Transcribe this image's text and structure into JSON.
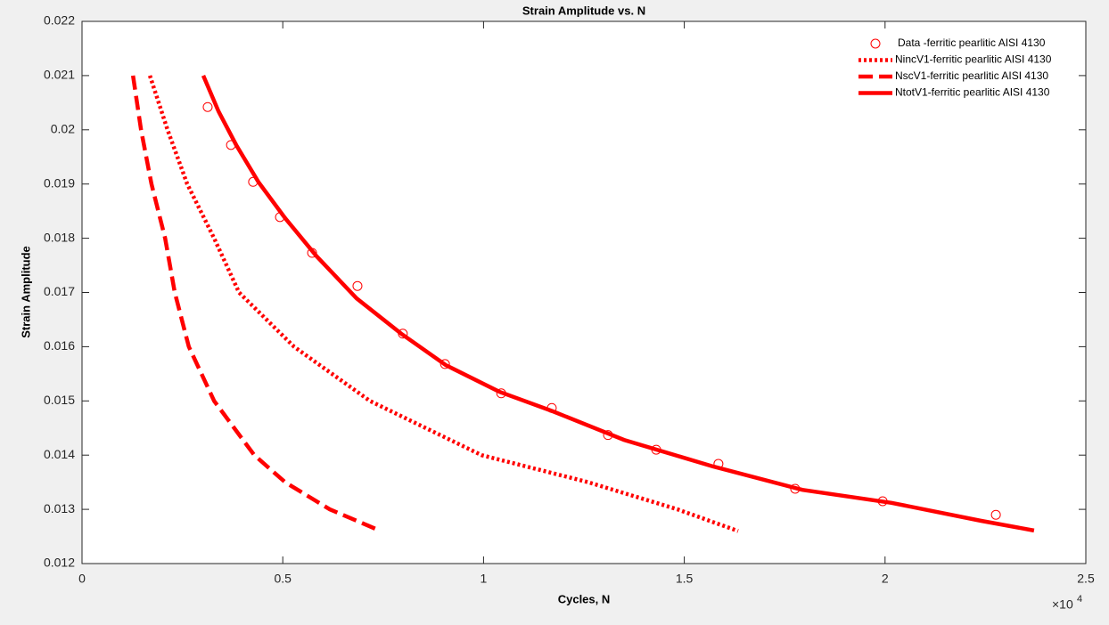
{
  "chart_data": {
    "type": "line",
    "title": "Strain Amplitude vs. N",
    "x_label": "Cycles, N",
    "y_label": "Strain Amplitude",
    "x_exponent_base": "×10",
    "x_exponent_power": "4",
    "xlim": [
      0,
      25000
    ],
    "ylim": [
      0.012,
      0.022
    ],
    "xticks": [
      0,
      {
        "value": 5000,
        "label": "0.5"
      },
      {
        "value": 10000,
        "label": "1"
      },
      {
        "value": 15000,
        "label": "1.5"
      },
      {
        "value": 20000,
        "label": "2"
      },
      {
        "value": 25000,
        "label": "2.5"
      }
    ],
    "yticks": [
      0.012,
      0.013,
      0.014,
      0.015,
      0.016,
      0.017,
      0.018,
      0.019,
      0.02,
      0.021,
      0.022
    ],
    "grid": false,
    "legend_position": "top-right",
    "series": [
      {
        "name": "Data -ferritic pearlitic AISI 4130",
        "color": "#ff0000",
        "marker": "circle",
        "x": [
          3130,
          3710,
          4260,
          4930,
          5730,
          6860,
          7990,
          9040,
          10440,
          11700,
          13100,
          14300,
          15850,
          17760,
          19940,
          22760
        ],
        "values": [
          0.02042,
          0.01972,
          0.01904,
          0.01839,
          0.01773,
          0.01712,
          0.01624,
          0.01568,
          0.01514,
          0.01487,
          0.01437,
          0.0141,
          0.01384,
          0.01338,
          0.01315,
          0.0129
        ]
      },
      {
        "name": "NincV1-ferritic pearlitic AISI 4130",
        "color": "#ff0000",
        "style": "dotted",
        "x": [
          1690,
          2130,
          2620,
          3290,
          3910,
          5280,
          7170,
          9950,
          12610,
          14830,
          16340
        ],
        "values": [
          0.021,
          0.02,
          0.019,
          0.018,
          0.017,
          0.016,
          0.015,
          0.014,
          0.0135,
          0.013,
          0.0126
        ]
      },
      {
        "name": "NscV1-ferritic pearlitic AISI 4130",
        "color": "#ff0000",
        "style": "dashed",
        "x": [
          1270,
          1470,
          1730,
          2070,
          2310,
          2660,
          3290,
          4290,
          5060,
          6170,
          7440
        ],
        "values": [
          0.021,
          0.02,
          0.019,
          0.018,
          0.017,
          0.016,
          0.015,
          0.014,
          0.0135,
          0.013,
          0.0126
        ]
      },
      {
        "name": "NtotV1-ferritic pearlitic AISI 4130",
        "color": "#ff0000",
        "style": "solid",
        "x": [
          3020,
          3400,
          3840,
          4400,
          5060,
          5840,
          6840,
          7950,
          9060,
          10390,
          11720,
          13500,
          15720,
          17940,
          20160,
          22380,
          23710
        ],
        "values": [
          0.021,
          0.02034,
          0.01972,
          0.01903,
          0.01837,
          0.01767,
          0.01689,
          0.01624,
          0.01566,
          0.01517,
          0.01481,
          0.01428,
          0.01379,
          0.01336,
          0.01312,
          0.01279,
          0.01261
        ]
      }
    ]
  }
}
